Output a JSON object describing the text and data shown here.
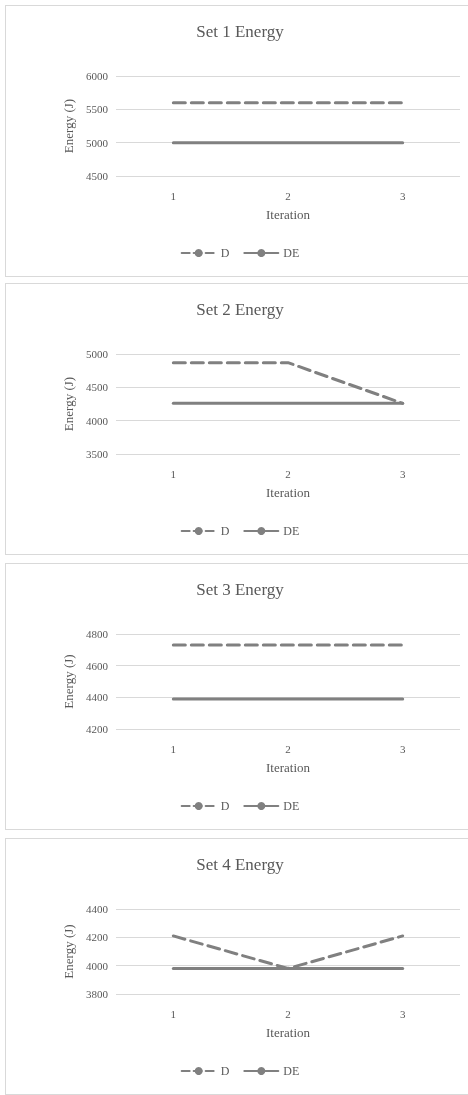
{
  "chart_data": [
    {
      "type": "line",
      "title": "Set 1 Energy",
      "xlabel": "Iteration",
      "ylabel": "Energy (J)",
      "categories": [
        "1",
        "2",
        "3"
      ],
      "series": [
        {
          "name": "D",
          "color": "#808080",
          "line_style": "dashed",
          "values": [
            5600,
            5600,
            5600
          ]
        },
        {
          "name": "DE",
          "color": "#808080",
          "line_style": "solid",
          "values": [
            5000,
            5000,
            5000
          ]
        }
      ],
      "ylim": [
        4500,
        6000
      ],
      "yticks": [
        4500,
        5000,
        5500,
        6000
      ],
      "grid": "y",
      "legend": "bottom",
      "marker": "none"
    },
    {
      "type": "line",
      "title": "Set 2 Energy",
      "xlabel": "Iteration",
      "ylabel": "Energy (J)",
      "categories": [
        "1",
        "2",
        "3"
      ],
      "series": [
        {
          "name": "D",
          "color": "#808080",
          "line_style": "dashed",
          "values": [
            4870,
            4870,
            4260
          ]
        },
        {
          "name": "DE",
          "color": "#808080",
          "line_style": "solid",
          "values": [
            4260,
            4260,
            4260
          ]
        }
      ],
      "ylim": [
        3500,
        5000
      ],
      "yticks": [
        3500,
        4000,
        4500,
        5000
      ],
      "grid": "y",
      "legend": "bottom",
      "marker": "none"
    },
    {
      "type": "line",
      "title": "Set 3 Energy",
      "xlabel": "Iteration",
      "ylabel": "Energy (J)",
      "categories": [
        "1",
        "2",
        "3"
      ],
      "series": [
        {
          "name": "D",
          "color": "#808080",
          "line_style": "dashed",
          "values": [
            4730,
            4730,
            4730
          ]
        },
        {
          "name": "DE",
          "color": "#808080",
          "line_style": "solid",
          "values": [
            4390,
            4390,
            4390
          ]
        }
      ],
      "ylim": [
        4200,
        4800
      ],
      "yticks": [
        4200,
        4400,
        4600,
        4800
      ],
      "grid": "y",
      "legend": "bottom",
      "marker": "none"
    },
    {
      "type": "line",
      "title": "Set 4 Energy",
      "xlabel": "Iteration",
      "ylabel": "Energy (J)",
      "categories": [
        "1",
        "2",
        "3"
      ],
      "series": [
        {
          "name": "D",
          "color": "#808080",
          "line_style": "dashed",
          "values": [
            4210,
            3980,
            4210
          ]
        },
        {
          "name": "DE",
          "color": "#808080",
          "line_style": "solid",
          "values": [
            3980,
            3980,
            3980
          ]
        }
      ],
      "ylim": [
        3800,
        4400
      ],
      "yticks": [
        3800,
        4000,
        4200,
        4400
      ],
      "grid": "y",
      "legend": "bottom",
      "marker": "none"
    }
  ]
}
